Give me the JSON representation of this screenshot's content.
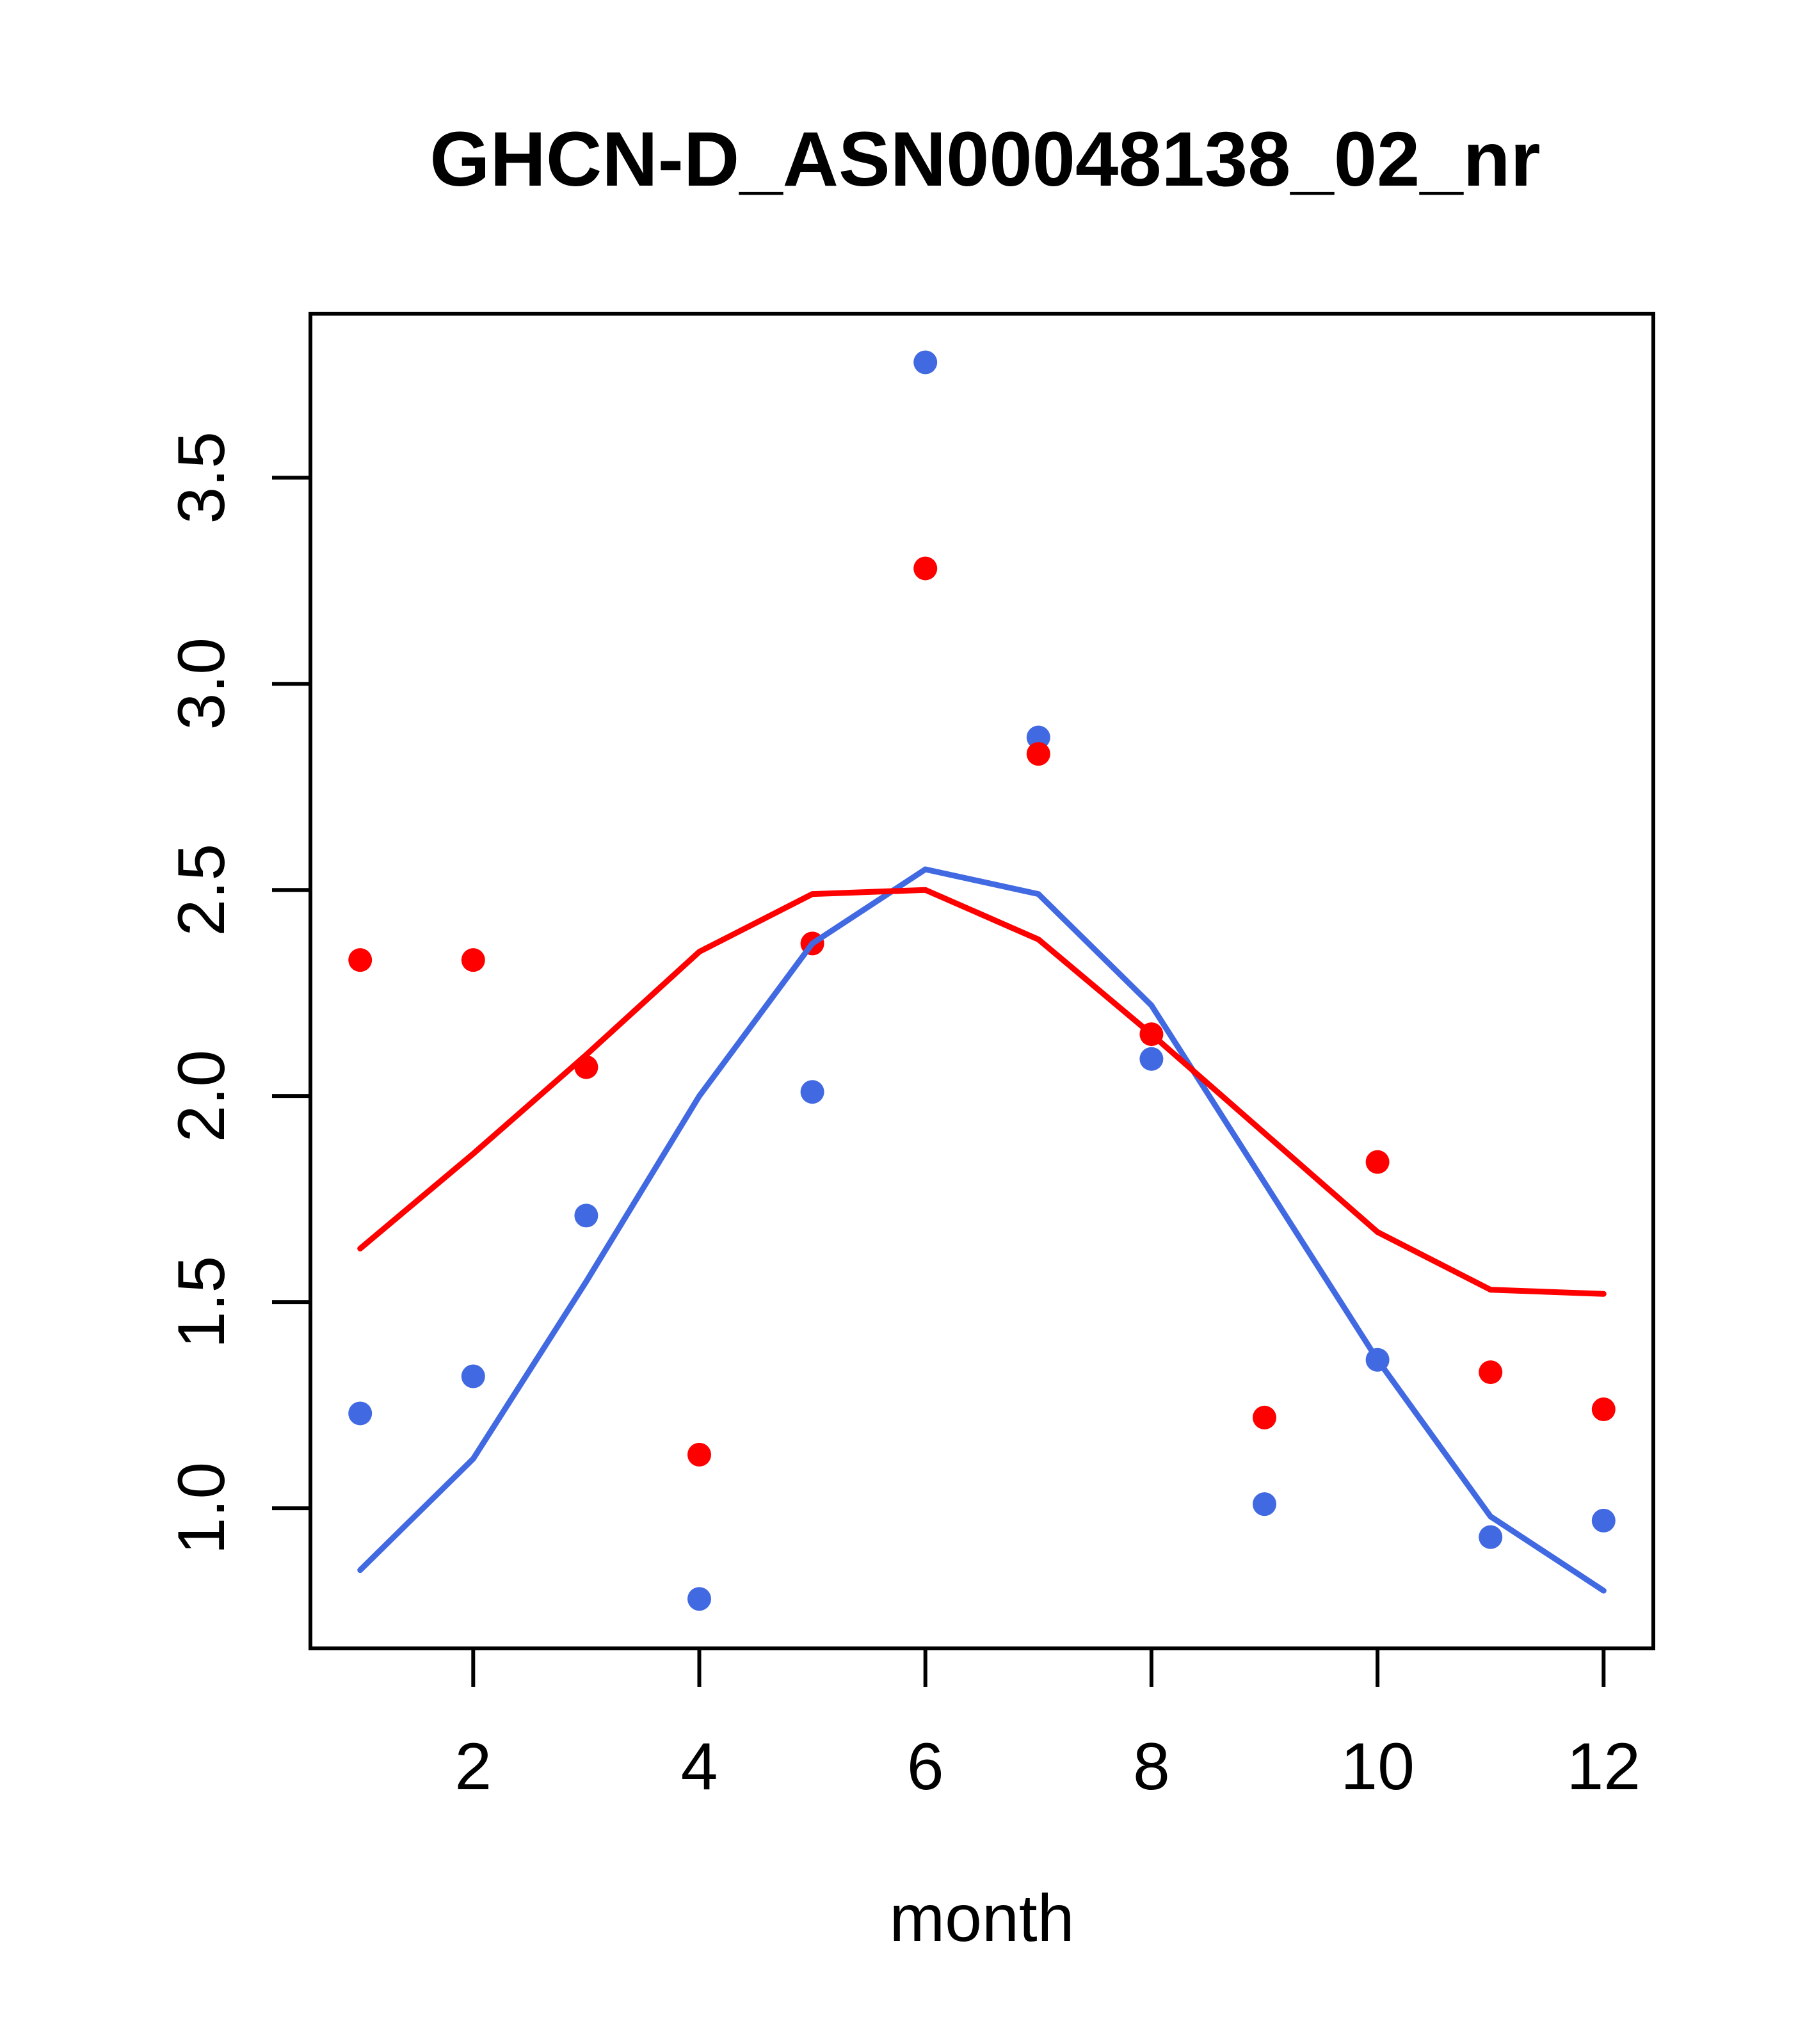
{
  "chart_data": {
    "type": "scatter",
    "title": "GHCN-D_ASN00048138_02_nr",
    "xlabel": "month",
    "ylabel": "",
    "x": [
      1,
      2,
      3,
      4,
      5,
      6,
      7,
      8,
      9,
      10,
      11,
      12
    ],
    "series": [
      {
        "name": "blue-points",
        "style": "points",
        "color": "#4169E1",
        "values": [
          1.23,
          1.32,
          1.71,
          0.78,
          2.01,
          3.78,
          2.87,
          2.09,
          1.01,
          1.36,
          0.93,
          0.97
        ]
      },
      {
        "name": "red-points",
        "style": "points",
        "color": "#FF0000",
        "values": [
          2.33,
          2.33,
          2.07,
          1.13,
          2.37,
          3.28,
          2.83,
          2.15,
          1.22,
          1.84,
          1.33,
          1.24
        ]
      },
      {
        "name": "blue-line",
        "style": "line",
        "color": "#4169E1",
        "values": [
          0.85,
          1.12,
          1.55,
          2.0,
          2.37,
          2.55,
          2.49,
          2.22,
          1.79,
          1.36,
          0.98,
          0.8
        ]
      },
      {
        "name": "red-line",
        "style": "line",
        "color": "#FF0000",
        "values": [
          1.63,
          1.86,
          2.1,
          2.35,
          2.49,
          2.5,
          2.38,
          2.15,
          1.91,
          1.67,
          1.53,
          1.52
        ]
      }
    ],
    "x_ticks": [
      2,
      4,
      6,
      8,
      10,
      12
    ],
    "x_tick_labels": [
      "2",
      "4",
      "6",
      "8",
      "10",
      "12"
    ],
    "y_ticks": [
      1.0,
      1.5,
      2.0,
      2.5,
      3.0,
      3.5
    ],
    "y_tick_labels": [
      "1.0",
      "1.5",
      "2.0",
      "2.5",
      "3.0",
      "3.5"
    ],
    "xlim": [
      0.56,
      12.44
    ],
    "ylim": [
      0.66,
      3.898
    ],
    "grid": false,
    "legend": null
  }
}
